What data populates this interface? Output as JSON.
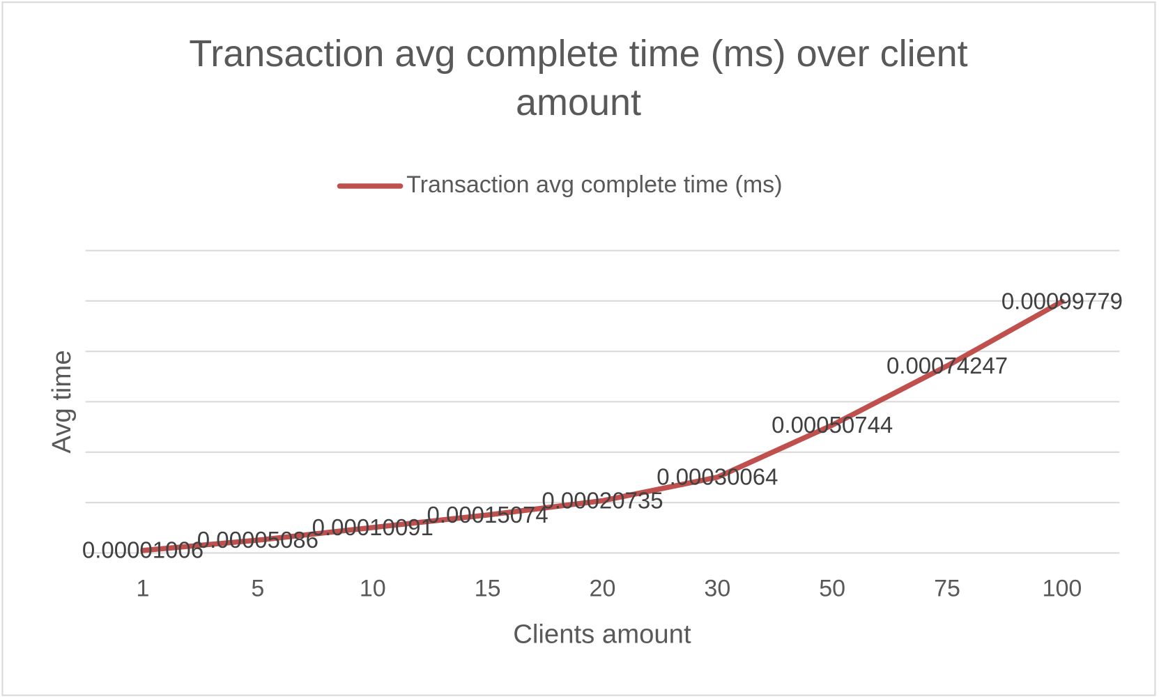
{
  "chart_data": {
    "type": "line",
    "title": "Transaction avg complete time (ms) over client amount",
    "x_label": "Clients amount",
    "y_label": "Avg time",
    "categories": [
      "1",
      "5",
      "10",
      "15",
      "20",
      "30",
      "50",
      "75",
      "100"
    ],
    "series": [
      {
        "name": "Transaction avg complete time (ms)",
        "color": "#c0504d",
        "values": [
          1.006e-05,
          5.086e-05,
          0.00010091,
          0.00015074,
          0.00020735,
          0.00030064,
          0.00050744,
          0.00074247,
          0.00099779
        ]
      }
    ],
    "ylim": [
      0,
      0.0012
    ],
    "yticks": [
      0,
      0.0002,
      0.0004,
      0.0006,
      0.0008,
      0.001,
      0.0012
    ],
    "grid": true,
    "legend": "top"
  }
}
